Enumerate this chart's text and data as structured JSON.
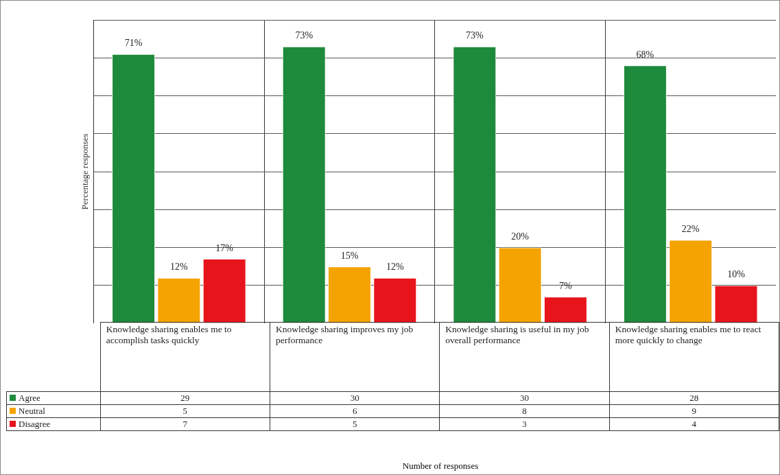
{
  "chart_data": {
    "type": "bar",
    "ylabel": "Percentage responses",
    "categories": [
      "Knowledge sharing enables me to accomplish tasks quickly",
      "Knowledge sharing improves my job performance",
      "Knowledge sharing is useful in my job overall performance",
      "Knowledge sharing enables me to react more quickly to change"
    ],
    "series": [
      {
        "name": "Agree",
        "color": "#1e8a3c",
        "values": [
          71,
          73,
          73,
          68
        ],
        "value_labels": [
          "71%",
          "73%",
          "73%",
          "68%"
        ]
      },
      {
        "name": "Neutral",
        "color": "#f5a300",
        "values": [
          12,
          15,
          20,
          22
        ],
        "value_labels": [
          "12%",
          "15%",
          "20%",
          "22%"
        ]
      },
      {
        "name": "Disagree",
        "color": "#e8141c",
        "values": [
          17,
          12,
          7,
          10
        ],
        "value_labels": [
          "17%",
          "12%",
          "7%",
          "10%"
        ]
      }
    ],
    "annotations": [
      "29",
      "30",
      "30",
      "28",
      "5",
      "6",
      "8",
      "9",
      "7",
      "5",
      "3",
      "4",
      "Number of responses"
    ],
    "grid": true,
    "legend": "bottom left"
  }
}
